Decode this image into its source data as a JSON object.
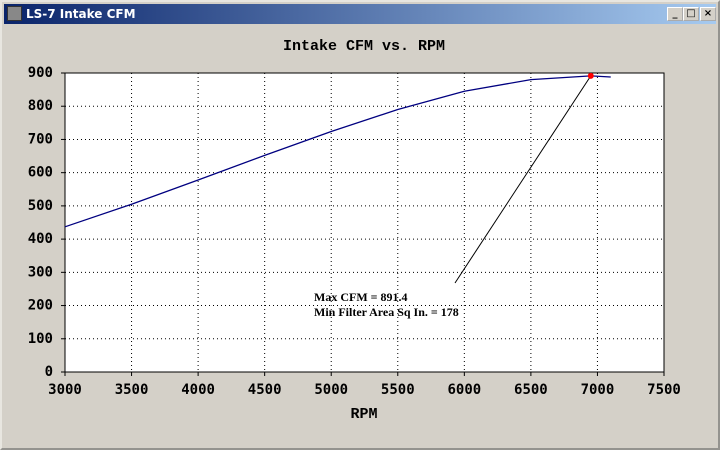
{
  "window": {
    "title": "LS-7 Intake CFM"
  },
  "chart_data": {
    "type": "line",
    "title": "Intake CFM vs. RPM",
    "x_label": "RPM",
    "x": [
      3000,
      3500,
      4000,
      4500,
      5000,
      5500,
      6000,
      6500,
      6950,
      7100
    ],
    "series": [
      {
        "name": "Intake CFM",
        "color": "#000080",
        "values": [
          437,
          505,
          578,
          652,
          724,
          790,
          845,
          880,
          891.4,
          888
        ]
      }
    ],
    "xlim": [
      3000,
      7500
    ],
    "xticks": [
      3000,
      3500,
      4000,
      4500,
      5000,
      5500,
      6000,
      6500,
      7000,
      7500
    ],
    "ylim": [
      0,
      900
    ],
    "yticks": [
      0,
      100,
      200,
      300,
      400,
      500,
      600,
      700,
      800,
      900
    ],
    "grid": true,
    "highlight": {
      "x": 6950,
      "y": 891.4,
      "color": "#ff0000"
    },
    "annotations": [
      "Max CFM = 891.4",
      "Min Filter Area Sq In. = 178"
    ]
  }
}
